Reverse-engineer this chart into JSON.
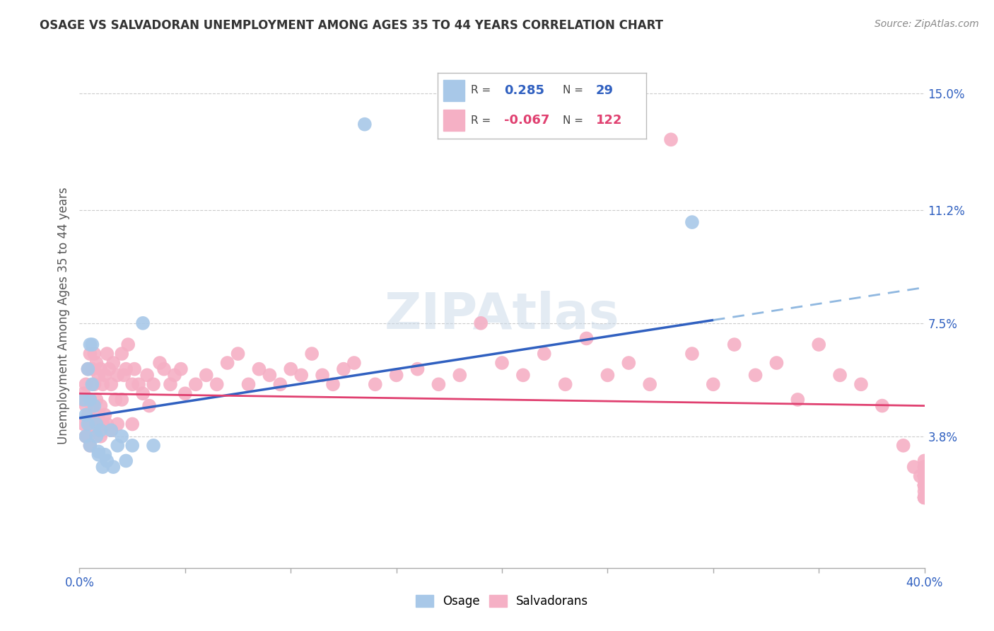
{
  "title": "OSAGE VS SALVADORAN UNEMPLOYMENT AMONG AGES 35 TO 44 YEARS CORRELATION CHART",
  "source": "Source: ZipAtlas.com",
  "ylabel": "Unemployment Among Ages 35 to 44 years",
  "xlim": [
    0.0,
    0.4
  ],
  "ylim": [
    -0.005,
    0.16
  ],
  "osage_color": "#a8c8e8",
  "salvadoran_color": "#f5b0c5",
  "osage_line_color": "#3060c0",
  "salvadoran_line_color": "#e04070",
  "dashed_line_color": "#90b8e0",
  "legend_r_osage": "0.285",
  "legend_n_osage": "29",
  "legend_r_salv": "-0.067",
  "legend_n_salv": "122",
  "osage_x": [
    0.002,
    0.003,
    0.003,
    0.004,
    0.004,
    0.005,
    0.005,
    0.005,
    0.006,
    0.006,
    0.007,
    0.008,
    0.008,
    0.009,
    0.009,
    0.01,
    0.011,
    0.012,
    0.013,
    0.015,
    0.016,
    0.018,
    0.02,
    0.022,
    0.025,
    0.03,
    0.035,
    0.135,
    0.29
  ],
  "osage_y": [
    0.05,
    0.045,
    0.038,
    0.06,
    0.042,
    0.068,
    0.05,
    0.035,
    0.068,
    0.055,
    0.048,
    0.042,
    0.038,
    0.033,
    0.032,
    0.04,
    0.028,
    0.032,
    0.03,
    0.04,
    0.028,
    0.035,
    0.038,
    0.03,
    0.035,
    0.075,
    0.035,
    0.14,
    0.108
  ],
  "salv_x": [
    0.001,
    0.002,
    0.002,
    0.003,
    0.003,
    0.003,
    0.004,
    0.004,
    0.004,
    0.005,
    0.005,
    0.005,
    0.005,
    0.006,
    0.006,
    0.006,
    0.007,
    0.007,
    0.007,
    0.008,
    0.008,
    0.008,
    0.009,
    0.009,
    0.01,
    0.01,
    0.01,
    0.011,
    0.011,
    0.012,
    0.012,
    0.013,
    0.013,
    0.014,
    0.015,
    0.015,
    0.016,
    0.017,
    0.018,
    0.018,
    0.02,
    0.02,
    0.021,
    0.022,
    0.023,
    0.025,
    0.025,
    0.026,
    0.028,
    0.03,
    0.032,
    0.033,
    0.035,
    0.038,
    0.04,
    0.043,
    0.045,
    0.048,
    0.05,
    0.055,
    0.06,
    0.065,
    0.07,
    0.075,
    0.08,
    0.085,
    0.09,
    0.095,
    0.1,
    0.105,
    0.11,
    0.115,
    0.12,
    0.125,
    0.13,
    0.14,
    0.15,
    0.16,
    0.17,
    0.18,
    0.19,
    0.2,
    0.21,
    0.22,
    0.23,
    0.24,
    0.25,
    0.26,
    0.27,
    0.28,
    0.29,
    0.3,
    0.31,
    0.32,
    0.33,
    0.34,
    0.35,
    0.36,
    0.37,
    0.38,
    0.39,
    0.395,
    0.398,
    0.4,
    0.4,
    0.4,
    0.4,
    0.4,
    0.4,
    0.4,
    0.4,
    0.4,
    0.4,
    0.4,
    0.4,
    0.4,
    0.4,
    0.4,
    0.4,
    0.4,
    0.4,
    0.4
  ],
  "salv_y": [
    0.05,
    0.052,
    0.042,
    0.055,
    0.048,
    0.038,
    0.06,
    0.045,
    0.038,
    0.065,
    0.05,
    0.042,
    0.035,
    0.06,
    0.048,
    0.04,
    0.065,
    0.055,
    0.042,
    0.062,
    0.05,
    0.04,
    0.058,
    0.045,
    0.06,
    0.048,
    0.038,
    0.055,
    0.042,
    0.058,
    0.045,
    0.065,
    0.042,
    0.06,
    0.055,
    0.04,
    0.062,
    0.05,
    0.058,
    0.042,
    0.065,
    0.05,
    0.058,
    0.06,
    0.068,
    0.055,
    0.042,
    0.06,
    0.055,
    0.052,
    0.058,
    0.048,
    0.055,
    0.062,
    0.06,
    0.055,
    0.058,
    0.06,
    0.052,
    0.055,
    0.058,
    0.055,
    0.062,
    0.065,
    0.055,
    0.06,
    0.058,
    0.055,
    0.06,
    0.058,
    0.065,
    0.058,
    0.055,
    0.06,
    0.062,
    0.055,
    0.058,
    0.06,
    0.055,
    0.058,
    0.075,
    0.062,
    0.058,
    0.065,
    0.055,
    0.07,
    0.058,
    0.062,
    0.055,
    0.135,
    0.065,
    0.055,
    0.068,
    0.058,
    0.062,
    0.05,
    0.068,
    0.058,
    0.055,
    0.048,
    0.035,
    0.028,
    0.025,
    0.03,
    0.025,
    0.022,
    0.028,
    0.025,
    0.02,
    0.028,
    0.022,
    0.025,
    0.018,
    0.025,
    0.022,
    0.018,
    0.025,
    0.022,
    0.018,
    0.025,
    0.022,
    0.018
  ]
}
